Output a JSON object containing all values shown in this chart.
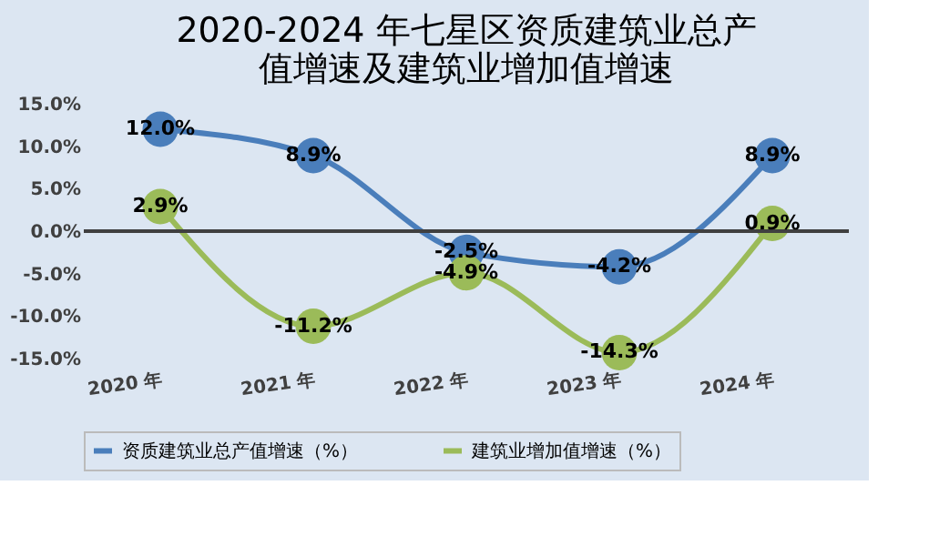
{
  "chart_data": {
    "type": "line",
    "title": [
      "2020-2024 年七星区资质建筑业总产",
      "值增速及建筑业增加值增速"
    ],
    "categories": [
      "2020 年",
      "2021 年",
      "2022 年",
      "2023 年",
      "2024 年"
    ],
    "series": [
      {
        "name": "资质建筑业总产值增速（%）",
        "color": "#4a7ebb",
        "values": [
          12.0,
          8.9,
          -2.5,
          -4.2,
          8.9
        ],
        "value_labels": [
          "12.0%",
          "8.9%",
          "-2.5%",
          "-4.2%",
          "8.9%"
        ]
      },
      {
        "name": "建筑业增加值增速（%）",
        "color": "#9bbb59",
        "values": [
          2.9,
          -11.2,
          -4.9,
          -14.3,
          0.9
        ],
        "value_labels": [
          "2.9%",
          "-11.2%",
          "-4.9%",
          "-14.3%",
          "0.9%"
        ]
      }
    ],
    "ylim": [
      -15,
      15
    ],
    "yticks": [
      {
        "value": -15,
        "label": "-15.0%"
      },
      {
        "value": -10,
        "label": "-10.0%"
      },
      {
        "value": -5,
        "label": "-5.0%"
      },
      {
        "value": 0,
        "label": "0.0%"
      },
      {
        "value": 5,
        "label": "5.0%"
      },
      {
        "value": 10,
        "label": "10.0%"
      },
      {
        "value": 15,
        "label": "15.0%"
      }
    ],
    "ref_lines": [
      {
        "axis": "y",
        "value": 0,
        "color": "#404040"
      }
    ],
    "grid": false,
    "legend": "bottom",
    "marker": "circle",
    "line_style": "solid"
  }
}
